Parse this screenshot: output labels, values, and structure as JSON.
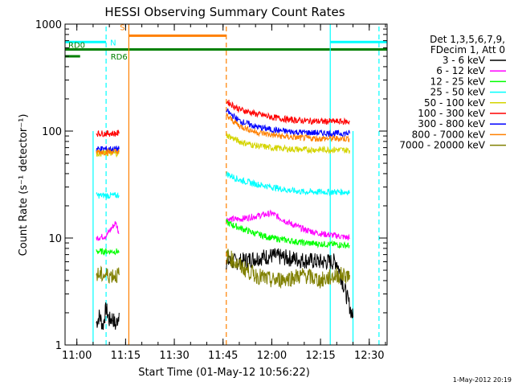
{
  "chart_data": {
    "type": "line",
    "title": "HESSI Observing Summary Count Rates",
    "xlabel": "Start Time (01-May-12 10:56:22)",
    "ylabel": "Count Rate (s⁻¹ detector⁻¹)",
    "xlim": [
      "10:56:22",
      "12:35:30"
    ],
    "ylim": [
      1,
      1000
    ],
    "yscale": "log",
    "x_ticks": [
      "11:00",
      "11:15",
      "11:30",
      "11:45",
      "12:00",
      "12:15",
      "12:30"
    ],
    "y_ticks": [
      "1",
      "10",
      "100",
      "1000"
    ],
    "legend": {
      "placement": "right-outside",
      "header": [
        "Det 1,3,5,6,7,9,",
        "FDecim 1, Att 0"
      ]
    },
    "series": [
      {
        "name": "3 - 6 keV",
        "color": "#000000",
        "segments": [
          {
            "x": [
              "11:06",
              "11:07",
              "11:08",
              "11:09",
              "11:10",
              "11:11",
              "11:12",
              "11:13"
            ],
            "y": [
              1.6,
              1.9,
              1.5,
              2.2,
              1.7,
              1.8,
              1.5,
              2.0
            ]
          },
          {
            "x": [
              "11:46",
              "11:50",
              "11:55",
              "12:00",
              "12:05",
              "12:10",
              "12:15",
              "12:20",
              "12:25"
            ],
            "y": [
              6.0,
              6.0,
              6.5,
              6.8,
              6.5,
              6.2,
              6.0,
              6.0,
              1.8
            ]
          }
        ]
      },
      {
        "name": "6 - 12 keV",
        "color": "#ff00ff",
        "segments": [
          {
            "x": [
              "11:06",
              "11:09",
              "11:12",
              "11:13"
            ],
            "y": [
              10,
              10.5,
              14,
              11
            ]
          },
          {
            "x": [
              "11:46",
              "11:50",
              "11:55",
              "12:00",
              "12:05",
              "12:10",
              "12:15",
              "12:20",
              "12:24"
            ],
            "y": [
              15,
              15,
              16,
              17,
              14,
              12,
              11,
              10.5,
              10
            ]
          }
        ]
      },
      {
        "name": "12 - 25 keV",
        "color": "#00ff00",
        "segments": [
          {
            "x": [
              "11:06",
              "11:13"
            ],
            "y": [
              7.5,
              7.5
            ]
          },
          {
            "x": [
              "11:46",
              "11:50",
              "11:55",
              "12:00",
              "12:05",
              "12:10",
              "12:15",
              "12:20",
              "12:24"
            ],
            "y": [
              14,
              12.5,
              11,
              10,
              9.5,
              9,
              8.8,
              8.7,
              8.5
            ]
          }
        ]
      },
      {
        "name": "25 - 50 keV",
        "color": "#00ffff",
        "segments": [
          {
            "x": [
              "11:06",
              "11:13"
            ],
            "y": [
              25,
              25
            ]
          },
          {
            "x": [
              "11:46",
              "11:50",
              "11:55",
              "12:00",
              "12:05",
              "12:10",
              "12:15",
              "12:20",
              "12:24"
            ],
            "y": [
              40,
              35,
              32,
              30,
              28,
              27,
              27,
              27,
              27
            ]
          }
        ]
      },
      {
        "name": "50 - 100 keV",
        "color": "#d4d400",
        "segments": [
          {
            "x": [
              "11:06",
              "11:13"
            ],
            "y": [
              62,
              62
            ]
          },
          {
            "x": [
              "11:46",
              "11:50",
              "11:55",
              "12:00",
              "12:05",
              "12:10",
              "12:15",
              "12:20",
              "12:24"
            ],
            "y": [
              92,
              80,
              73,
              70,
              68,
              67,
              67,
              67,
              66
            ]
          }
        ]
      },
      {
        "name": "100 - 300 keV",
        "color": "#ff0000",
        "segments": [
          {
            "x": [
              "11:06",
              "11:13"
            ],
            "y": [
              95,
              95
            ]
          },
          {
            "x": [
              "11:46",
              "11:50",
              "11:55",
              "12:00",
              "12:05",
              "12:10",
              "12:15",
              "12:20",
              "12:24"
            ],
            "y": [
              190,
              160,
              145,
              135,
              128,
              125,
              123,
              123,
              122
            ]
          }
        ]
      },
      {
        "name": "300 - 800 keV",
        "color": "#0000ff",
        "segments": [
          {
            "x": [
              "11:06",
              "11:13"
            ],
            "y": [
              68,
              68
            ]
          },
          {
            "x": [
              "11:46",
              "11:50",
              "11:55",
              "12:00",
              "12:05",
              "12:10",
              "12:15",
              "12:20",
              "12:24"
            ],
            "y": [
              155,
              125,
              110,
              103,
              99,
              97,
              96,
              95,
              95
            ]
          }
        ]
      },
      {
        "name": "800 - 7000 keV",
        "color": "#ff8000",
        "segments": [
          {
            "x": [
              "11:06",
              "11:13"
            ],
            "y": [
              64,
              64
            ]
          },
          {
            "x": [
              "11:46",
              "11:50",
              "11:55",
              "12:00",
              "12:05",
              "12:10",
              "12:15",
              "12:20",
              "12:24"
            ],
            "y": [
              140,
              112,
              98,
              92,
              88,
              86,
              85,
              85,
              85
            ]
          }
        ]
      },
      {
        "name": "7000 - 20000 keV",
        "color": "#808000",
        "segments": [
          {
            "x": [
              "11:06",
              "11:13"
            ],
            "y": [
              4.5,
              4.5
            ]
          },
          {
            "x": [
              "11:46",
              "11:50",
              "11:55",
              "12:00",
              "12:05",
              "12:10",
              "12:15",
              "12:20",
              "12:24"
            ],
            "y": [
              7,
              5.5,
              4.5,
              4,
              4.2,
              4.5,
              4,
              4.5,
              4.5
            ]
          }
        ]
      }
    ],
    "annotations": [
      {
        "label": "N",
        "color": "#00ffff",
        "x_start": "10:56:22",
        "x_end": "11:09",
        "y": 680
      },
      {
        "label": "S",
        "color": "#ff8000",
        "x_start": "11:16",
        "x_end": "11:46",
        "y": 780
      },
      {
        "label": "RD0",
        "color": "#008000",
        "x_start": "10:56:22",
        "x_end": "12:35:30",
        "y": 580
      },
      {
        "label": "RD6",
        "color": "#008000",
        "x_start": "10:56:22",
        "x_end": "11:01",
        "y": 500
      },
      {
        "label": "",
        "color": "#00ffff",
        "x_start": "12:18",
        "x_end": "12:35:30",
        "y": 680
      }
    ],
    "vlines": [
      {
        "x": "11:09",
        "color": "#00ffff",
        "style": "dashed"
      },
      {
        "x": "11:16",
        "color": "#ff8000",
        "style": "solid"
      },
      {
        "x": "11:46",
        "color": "#ff8000",
        "style": "dashed"
      },
      {
        "x": "12:18",
        "color": "#00ffff",
        "style": "solid"
      },
      {
        "x": "12:33",
        "color": "#00ffff",
        "style": "dashed"
      },
      {
        "x": "11:05",
        "color": "#00ffff",
        "style": "solid",
        "to_y": 100
      },
      {
        "x": "12:25",
        "color": "#00ffff",
        "style": "solid",
        "to_y": 100
      }
    ]
  },
  "footer": {
    "timestamp": "1-May-2012 20:19"
  }
}
